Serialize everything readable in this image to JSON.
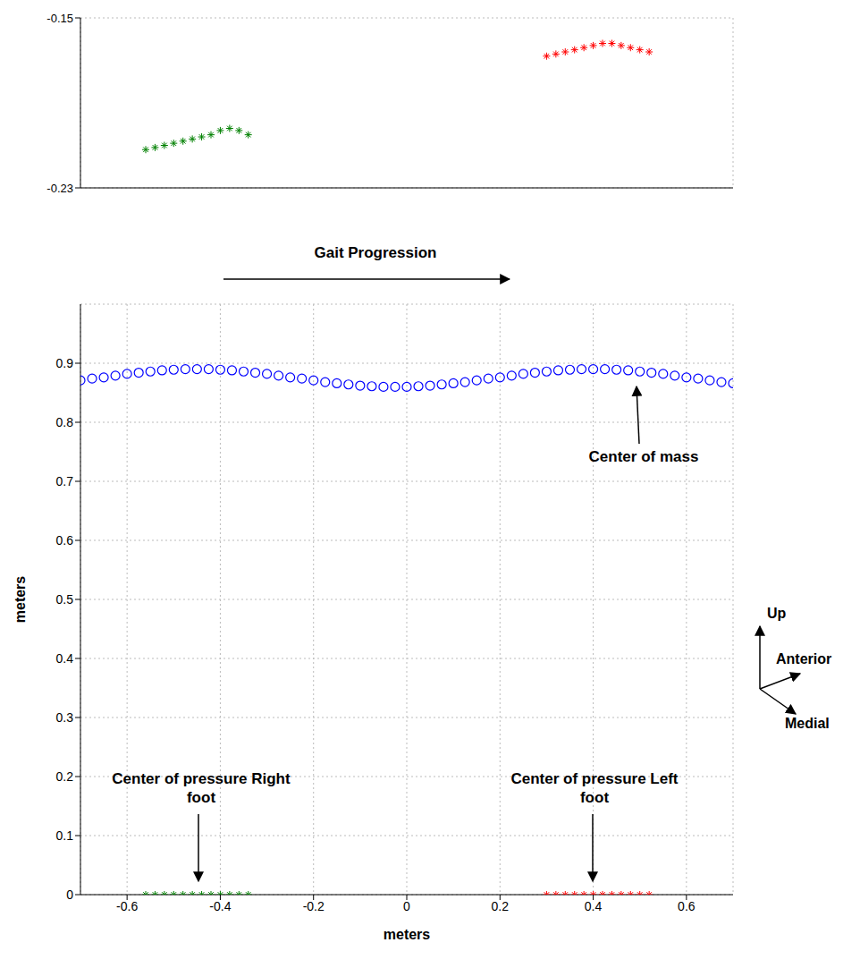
{
  "chart_data": {
    "type": "scatter",
    "x_label": "meters",
    "y_label": "meters",
    "xlim": [
      -0.7,
      0.7
    ],
    "xticks": [
      -0.6,
      -0.4,
      -0.2,
      0,
      0.2,
      0.4,
      0.6
    ],
    "ylim": [
      0,
      1
    ],
    "yticks": [
      0,
      0.1,
      0.2,
      0.3,
      0.4,
      0.5,
      0.6,
      0.7,
      0.8,
      0.9
    ],
    "medial_lim": [
      -0.23,
      -0.15
    ],
    "medial_ticks": [
      -0.23,
      -0.15
    ],
    "grid": true,
    "annotations": {
      "progression": "Gait Progression",
      "up": "Up",
      "anterior": "Anterior",
      "medial": "Medial"
    },
    "series": [
      {
        "name": "Center of mass",
        "color": "#0000ff",
        "marker": "circle",
        "x": [
          -0.7,
          -0.675,
          -0.65,
          -0.625,
          -0.6,
          -0.575,
          -0.55,
          -0.525,
          -0.5,
          -0.475,
          -0.45,
          -0.425,
          -0.4,
          -0.375,
          -0.35,
          -0.325,
          -0.3,
          -0.275,
          -0.25,
          -0.225,
          -0.2,
          -0.175,
          -0.15,
          -0.125,
          -0.1,
          -0.075,
          -0.05,
          -0.025,
          0,
          0.025,
          0.05,
          0.075,
          0.1,
          0.125,
          0.15,
          0.175,
          0.2,
          0.225,
          0.25,
          0.275,
          0.3,
          0.325,
          0.35,
          0.375,
          0.4,
          0.425,
          0.45,
          0.475,
          0.5,
          0.525,
          0.55,
          0.575,
          0.6,
          0.625,
          0.65,
          0.675,
          0.7
        ],
        "values": [
          0.871,
          0.874,
          0.876,
          0.879,
          0.882,
          0.884,
          0.886,
          0.888,
          0.889,
          0.89,
          0.89,
          0.89,
          0.889,
          0.888,
          0.886,
          0.884,
          0.882,
          0.879,
          0.876,
          0.874,
          0.871,
          0.868,
          0.866,
          0.864,
          0.862,
          0.861,
          0.86,
          0.86,
          0.86,
          0.861,
          0.862,
          0.864,
          0.866,
          0.868,
          0.871,
          0.874,
          0.876,
          0.879,
          0.882,
          0.884,
          0.886,
          0.888,
          0.889,
          0.89,
          0.89,
          0.89,
          0.889,
          0.888,
          0.886,
          0.884,
          0.882,
          0.879,
          0.876,
          0.874,
          0.871,
          0.868,
          0.866
        ]
      },
      {
        "name": "Center of pressure Right foot",
        "color": "#008000",
        "marker": "asterisk",
        "x": [
          -0.56,
          -0.54,
          -0.52,
          -0.5,
          -0.48,
          -0.46,
          -0.44,
          -0.42,
          -0.4,
          -0.38,
          -0.36,
          -0.34
        ],
        "values": [
          0,
          0,
          0,
          0,
          0,
          0,
          0,
          0,
          0,
          0,
          0,
          0
        ],
        "medial": [
          -0.212,
          -0.211,
          -0.21,
          -0.209,
          -0.208,
          -0.207,
          -0.206,
          -0.205,
          -0.203,
          -0.202,
          -0.203,
          -0.205
        ]
      },
      {
        "name": "Center of pressure Left foot",
        "color": "#ff0000",
        "marker": "asterisk",
        "x": [
          0.3,
          0.32,
          0.34,
          0.36,
          0.38,
          0.4,
          0.42,
          0.44,
          0.46,
          0.48,
          0.5,
          0.52
        ],
        "values": [
          0,
          0,
          0,
          0,
          0,
          0,
          0,
          0,
          0,
          0,
          0,
          0
        ],
        "medial": [
          -0.168,
          -0.167,
          -0.166,
          -0.165,
          -0.164,
          -0.163,
          -0.162,
          -0.162,
          -0.163,
          -0.164,
          -0.165,
          -0.166
        ]
      }
    ]
  }
}
